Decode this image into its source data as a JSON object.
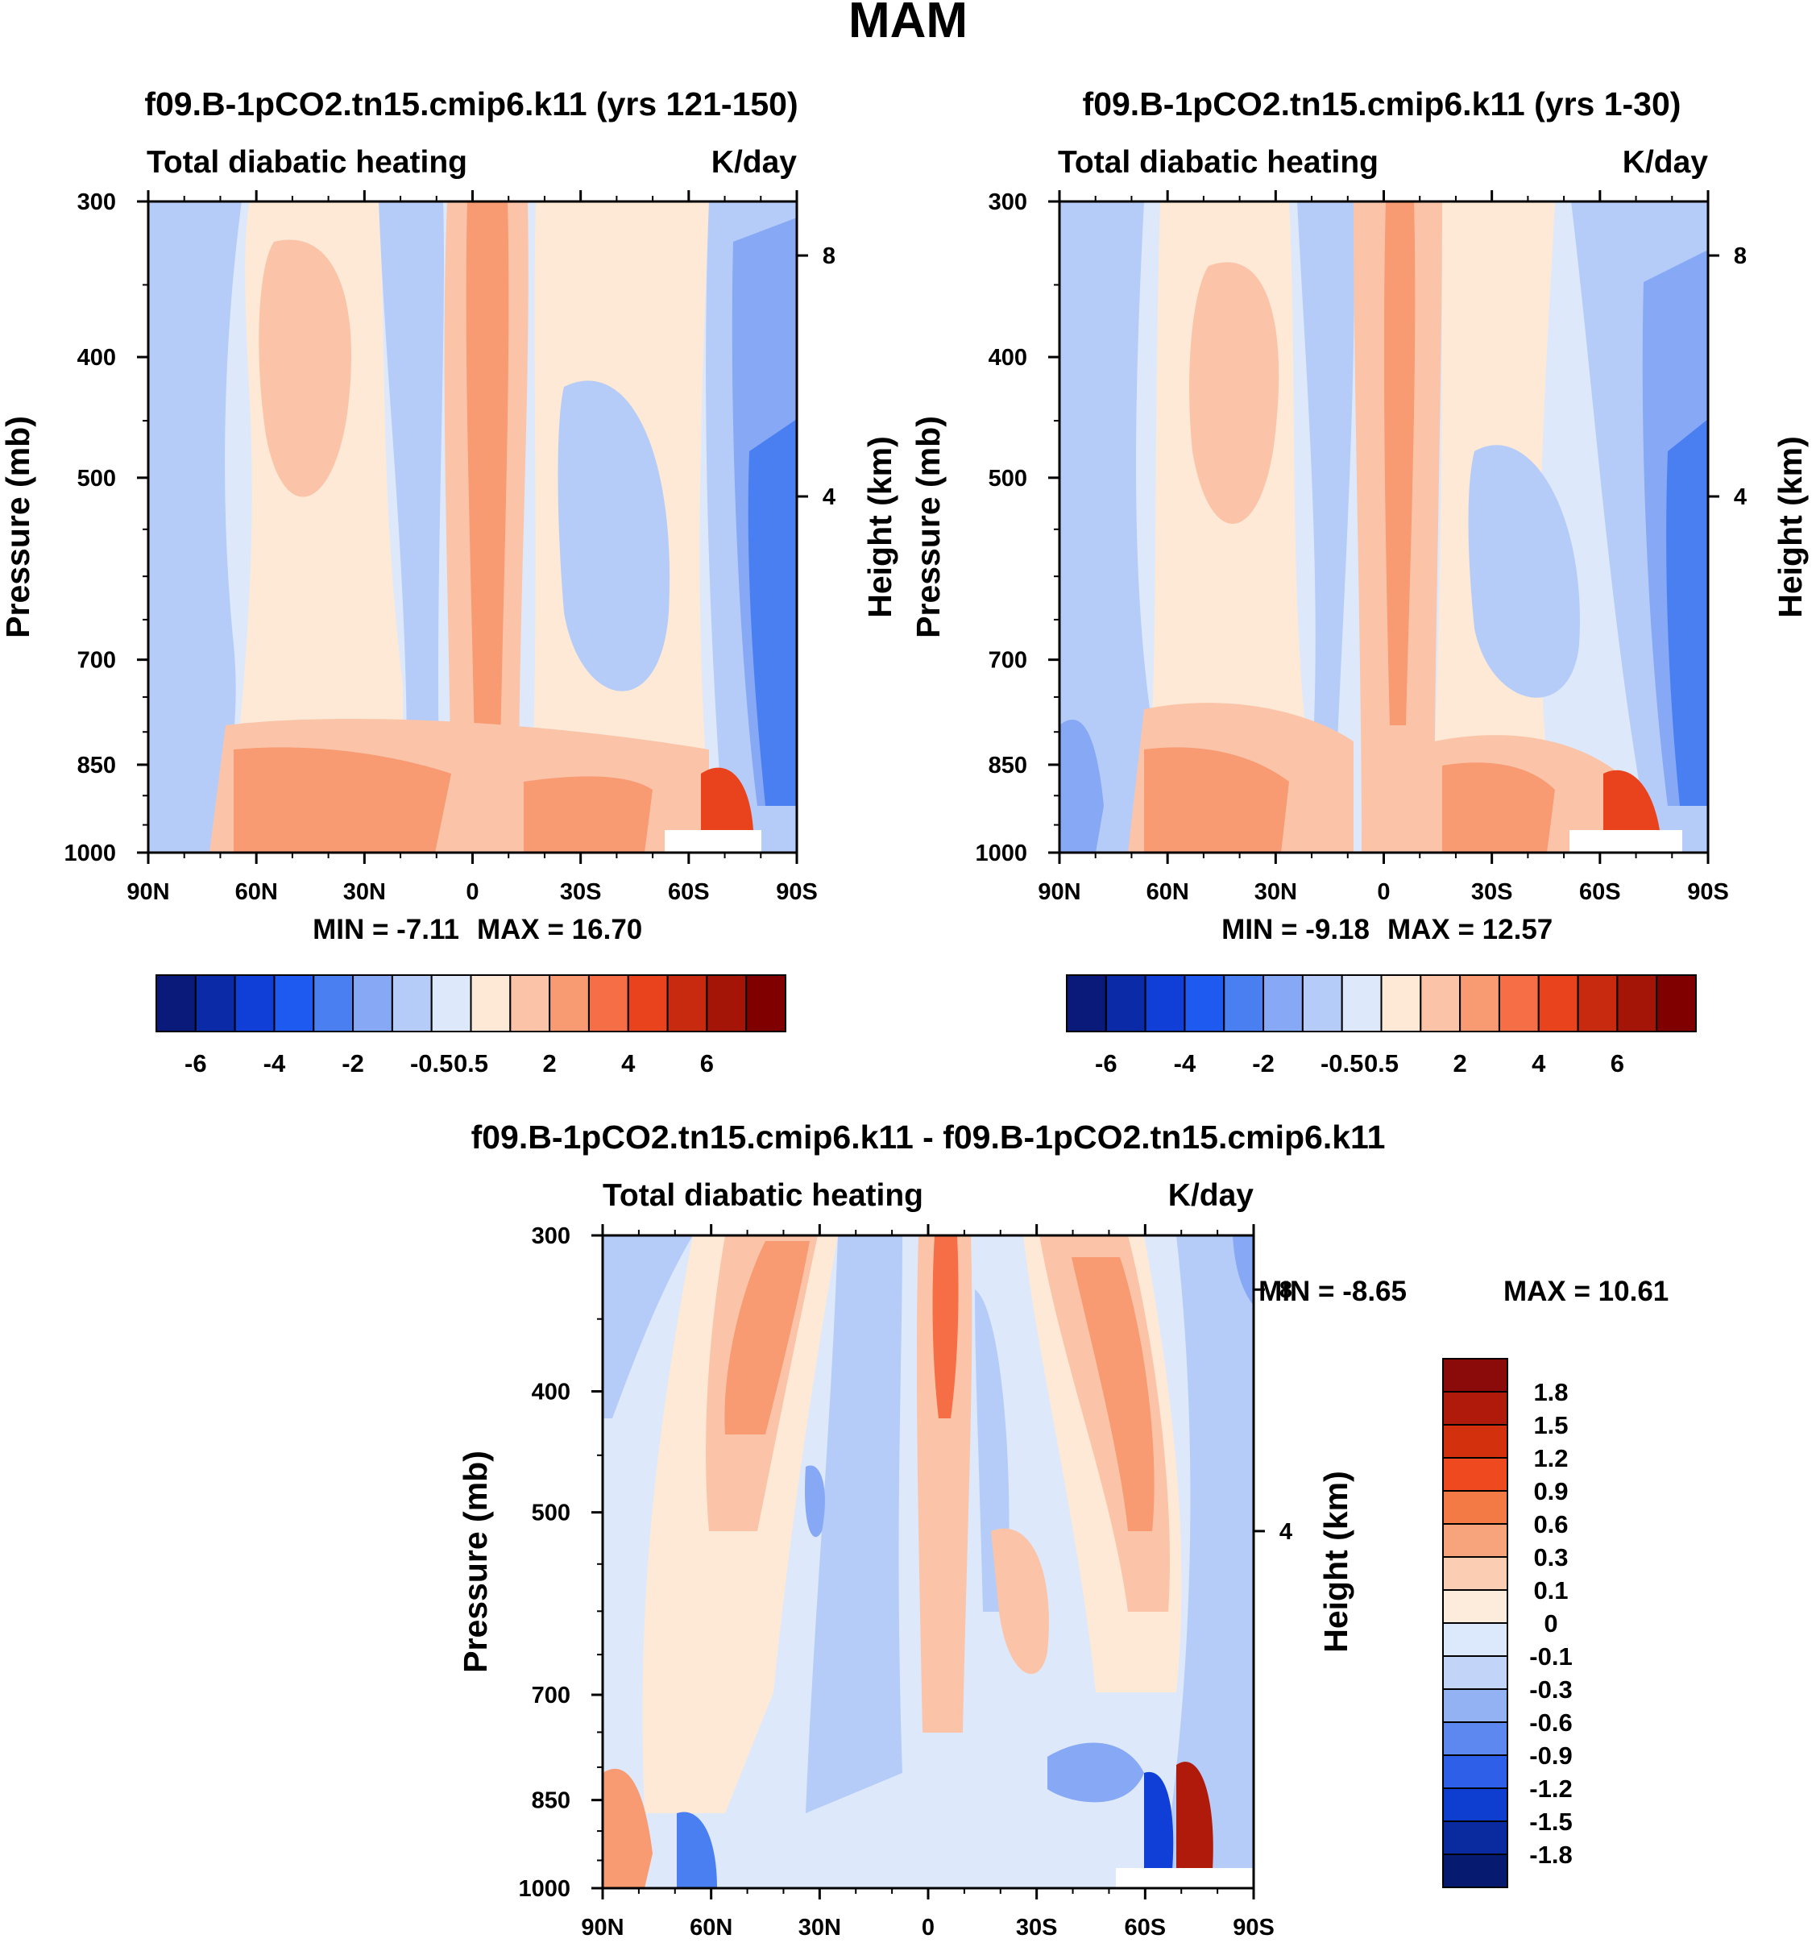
{
  "title": "MAM",
  "chart_data": [
    {
      "type": "heatmap",
      "title": "f09.B-1pCO2.tn15.cmip6.k11 (yrs 121-150)",
      "subtitle_left": "Total diabatic heating",
      "units": "K/day",
      "ylabel": "Pressure (mb)",
      "ylabel_right": "Height (km)",
      "x_ticks": [
        "90N",
        "60N",
        "30N",
        "0",
        "30S",
        "60S",
        "90S"
      ],
      "y_ticks": [
        "300",
        "400",
        "500",
        "700",
        "850",
        "1000"
      ],
      "y_ticks_right": [
        "8",
        "4"
      ],
      "min_text": "MIN =  -7.11",
      "max_text": "MAX =  16.70",
      "xlim": [
        90,
        -90
      ],
      "ylim": [
        1000,
        300
      ]
    },
    {
      "type": "heatmap",
      "title": "f09.B-1pCO2.tn15.cmip6.k11 (yrs 1-30)",
      "subtitle_left": "Total diabatic heating",
      "units": "K/day",
      "ylabel": "Pressure (mb)",
      "ylabel_right": "Height (km)",
      "x_ticks": [
        "90N",
        "60N",
        "30N",
        "0",
        "30S",
        "60S",
        "90S"
      ],
      "y_ticks": [
        "300",
        "400",
        "500",
        "700",
        "850",
        "1000"
      ],
      "y_ticks_right": [
        "8",
        "4"
      ],
      "min_text": "MIN =  -9.18",
      "max_text": "MAX =  12.57",
      "xlim": [
        90,
        -90
      ],
      "ylim": [
        1000,
        300
      ]
    },
    {
      "type": "heatmap",
      "title": "f09.B-1pCO2.tn15.cmip6.k11 - f09.B-1pCO2.tn15.cmip6.k11",
      "subtitle_left": "Total diabatic heating",
      "units": "K/day",
      "ylabel": "Pressure (mb)",
      "ylabel_right": "Height (km)",
      "x_ticks": [
        "90N",
        "60N",
        "30N",
        "0",
        "30S",
        "60S",
        "90S"
      ],
      "y_ticks": [
        "300",
        "400",
        "500",
        "700",
        "850",
        "1000"
      ],
      "y_ticks_right": [
        "8",
        "4"
      ],
      "min_text": "MIN =  -8.65",
      "max_text": "MAX =  10.61",
      "xlim": [
        90,
        -90
      ],
      "ylim": [
        1000,
        300
      ]
    }
  ],
  "colorbar_top": {
    "labels": [
      "-6",
      "-4",
      "-2",
      "-0.5",
      "0.5",
      "2",
      "4",
      "6"
    ],
    "colors": [
      "#0a1a7a",
      "#0b2aa8",
      "#0f3fd6",
      "#1f5af0",
      "#4a7ff2",
      "#86a8f5",
      "#b6ccf8",
      "#dde9fb",
      "#fde9d6",
      "#fbc4a8",
      "#f89a72",
      "#f56e45",
      "#e8431c",
      "#c72a0e",
      "#a41507",
      "#800000"
    ]
  },
  "colorbar_diff": {
    "labels": [
      "1.8",
      "1.5",
      "1.2",
      "0.9",
      "0.6",
      "0.3",
      "0.1",
      "0",
      "-0.1",
      "-0.3",
      "-0.6",
      "-0.9",
      "-1.2",
      "-1.5",
      "-1.8"
    ],
    "colors": [
      "#8b0b0b",
      "#b01a0a",
      "#d3300e",
      "#ef4a1f",
      "#f47a45",
      "#f7a37b",
      "#fbcdb3",
      "#fdecdc",
      "#dce8fb",
      "#c2d5f8",
      "#93b2f3",
      "#5c88ef",
      "#2d5fe8",
      "#0d3ed0",
      "#0a2aa0",
      "#061a70"
    ]
  },
  "colors": {
    "blue_light": "#dde9fb",
    "blue_mid": "#b6ccf8",
    "blue": "#86a8f5",
    "red_light": "#fde9d6",
    "red_mid": "#fbc4a8",
    "red": "#f89a72",
    "red_strong": "#f56e45"
  }
}
